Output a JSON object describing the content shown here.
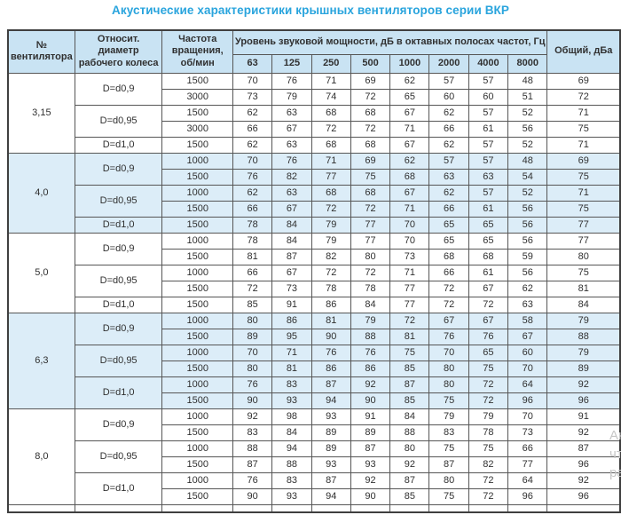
{
  "title": "Акустические характеристики крышных вентиляторов серии ВКР",
  "colors": {
    "title": "#29a4dd",
    "header_bg": "#c9e3f3",
    "shaded_row_bg": "#dcedf8",
    "border": "#565656",
    "text": "#303030"
  },
  "watermark": {
    "lines": [
      "Ак",
      "чт",
      "ра"
    ]
  },
  "table": {
    "headers": {
      "fan_no": "№ вентилятора",
      "diameter": "Относит. диаметр рабочего колеса",
      "rpm": "Частота вращения, об/мин",
      "spl_group": "Уровень звуковой мощности, дБ в октавных полосах частот, Гц",
      "freq_bands": [
        "63",
        "125",
        "250",
        "500",
        "1000",
        "2000",
        "4000",
        "8000"
      ],
      "total": "Общий, дБа"
    },
    "sections": [
      {
        "fan_no": "3,15",
        "shaded": false,
        "groups": [
          {
            "diameter": "D=d0,9",
            "rows": [
              {
                "rpm": "1500",
                "levels": [
                  70,
                  76,
                  71,
                  69,
                  62,
                  57,
                  57,
                  48
                ],
                "total": 69
              },
              {
                "rpm": "3000",
                "levels": [
                  73,
                  79,
                  74,
                  72,
                  65,
                  60,
                  60,
                  51
                ],
                "total": 72
              }
            ]
          },
          {
            "diameter": "D=d0,95",
            "rows": [
              {
                "rpm": "1500",
                "levels": [
                  62,
                  63,
                  68,
                  68,
                  67,
                  62,
                  57,
                  52
                ],
                "total": 71
              },
              {
                "rpm": "3000",
                "levels": [
                  66,
                  67,
                  72,
                  72,
                  71,
                  66,
                  61,
                  56
                ],
                "total": 75
              }
            ]
          },
          {
            "diameter": "D=d1,0",
            "rows": [
              {
                "rpm": "1500",
                "levels": [
                  62,
                  63,
                  68,
                  68,
                  67,
                  62,
                  57,
                  52
                ],
                "total": 71
              }
            ]
          }
        ]
      },
      {
        "fan_no": "4,0",
        "shaded": true,
        "groups": [
          {
            "diameter": "D=d0,9",
            "rows": [
              {
                "rpm": "1000",
                "levels": [
                  70,
                  76,
                  71,
                  69,
                  62,
                  57,
                  57,
                  48
                ],
                "total": 69
              },
              {
                "rpm": "1500",
                "levels": [
                  76,
                  82,
                  77,
                  75,
                  68,
                  63,
                  63,
                  54
                ],
                "total": 75
              }
            ]
          },
          {
            "diameter": "D=d0,95",
            "rows": [
              {
                "rpm": "1000",
                "levels": [
                  62,
                  63,
                  68,
                  68,
                  67,
                  62,
                  57,
                  52
                ],
                "total": 71
              },
              {
                "rpm": "1500",
                "levels": [
                  66,
                  67,
                  72,
                  72,
                  71,
                  66,
                  61,
                  56
                ],
                "total": 75
              }
            ]
          },
          {
            "diameter": "D=d1,0",
            "rows": [
              {
                "rpm": "1500",
                "levels": [
                  78,
                  84,
                  79,
                  77,
                  70,
                  65,
                  65,
                  56
                ],
                "total": 77
              }
            ]
          }
        ]
      },
      {
        "fan_no": "5,0",
        "shaded": false,
        "groups": [
          {
            "diameter": "D=d0,9",
            "rows": [
              {
                "rpm": "1000",
                "levels": [
                  78,
                  84,
                  79,
                  77,
                  70,
                  65,
                  65,
                  56
                ],
                "total": 77
              },
              {
                "rpm": "1500",
                "levels": [
                  81,
                  87,
                  82,
                  80,
                  73,
                  68,
                  68,
                  59
                ],
                "total": 80
              }
            ]
          },
          {
            "diameter": "D=d0,95",
            "rows": [
              {
                "rpm": "1000",
                "levels": [
                  66,
                  67,
                  72,
                  72,
                  71,
                  66,
                  61,
                  56
                ],
                "total": 75
              },
              {
                "rpm": "1500",
                "levels": [
                  72,
                  73,
                  78,
                  78,
                  77,
                  72,
                  67,
                  62
                ],
                "total": 81
              }
            ]
          },
          {
            "diameter": "D=d1,0",
            "rows": [
              {
                "rpm": "1500",
                "levels": [
                  85,
                  91,
                  86,
                  84,
                  77,
                  72,
                  72,
                  63
                ],
                "total": 84
              }
            ]
          }
        ]
      },
      {
        "fan_no": "6,3",
        "shaded": true,
        "groups": [
          {
            "diameter": "D=d0,9",
            "rows": [
              {
                "rpm": "1000",
                "levels": [
                  80,
                  86,
                  81,
                  79,
                  72,
                  67,
                  67,
                  58
                ],
                "total": 79
              },
              {
                "rpm": "1500",
                "levels": [
                  89,
                  95,
                  90,
                  88,
                  81,
                  76,
                  76,
                  67
                ],
                "total": 88
              }
            ]
          },
          {
            "diameter": "D=d0,95",
            "rows": [
              {
                "rpm": "1000",
                "levels": [
                  70,
                  71,
                  76,
                  76,
                  75,
                  70,
                  65,
                  60
                ],
                "total": 79
              },
              {
                "rpm": "1500",
                "levels": [
                  80,
                  81,
                  86,
                  86,
                  85,
                  80,
                  75,
                  70
                ],
                "total": 89
              }
            ]
          },
          {
            "diameter": "D=d1,0",
            "rows": [
              {
                "rpm": "1000",
                "levels": [
                  76,
                  83,
                  87,
                  92,
                  87,
                  80,
                  72,
                  64
                ],
                "total": 92
              },
              {
                "rpm": "1500",
                "levels": [
                  90,
                  93,
                  94,
                  90,
                  85,
                  75,
                  72,
                  96
                ],
                "total": 96
              }
            ]
          }
        ]
      },
      {
        "fan_no": "8,0",
        "shaded": false,
        "groups": [
          {
            "diameter": "D=d0,9",
            "rows": [
              {
                "rpm": "1000",
                "levels": [
                  92,
                  98,
                  93,
                  91,
                  84,
                  79,
                  79,
                  70
                ],
                "total": 91
              },
              {
                "rpm": "1500",
                "levels": [
                  83,
                  84,
                  89,
                  89,
                  88,
                  83,
                  78,
                  73
                ],
                "total": 92
              }
            ]
          },
          {
            "diameter": "D=d0,95",
            "rows": [
              {
                "rpm": "1000",
                "levels": [
                  88,
                  94,
                  89,
                  87,
                  80,
                  75,
                  75,
                  66
                ],
                "total": 87
              },
              {
                "rpm": "1500",
                "levels": [
                  87,
                  88,
                  93,
                  93,
                  92,
                  87,
                  82,
                  77
                ],
                "total": 96
              }
            ]
          },
          {
            "diameter": "D=d1,0",
            "rows": [
              {
                "rpm": "1000",
                "levels": [
                  76,
                  83,
                  87,
                  92,
                  87,
                  80,
                  72,
                  64
                ],
                "total": 92
              },
              {
                "rpm": "1500",
                "levels": [
                  90,
                  93,
                  94,
                  90,
                  85,
                  75,
                  72,
                  96
                ],
                "total": 96
              }
            ]
          }
        ]
      }
    ]
  }
}
